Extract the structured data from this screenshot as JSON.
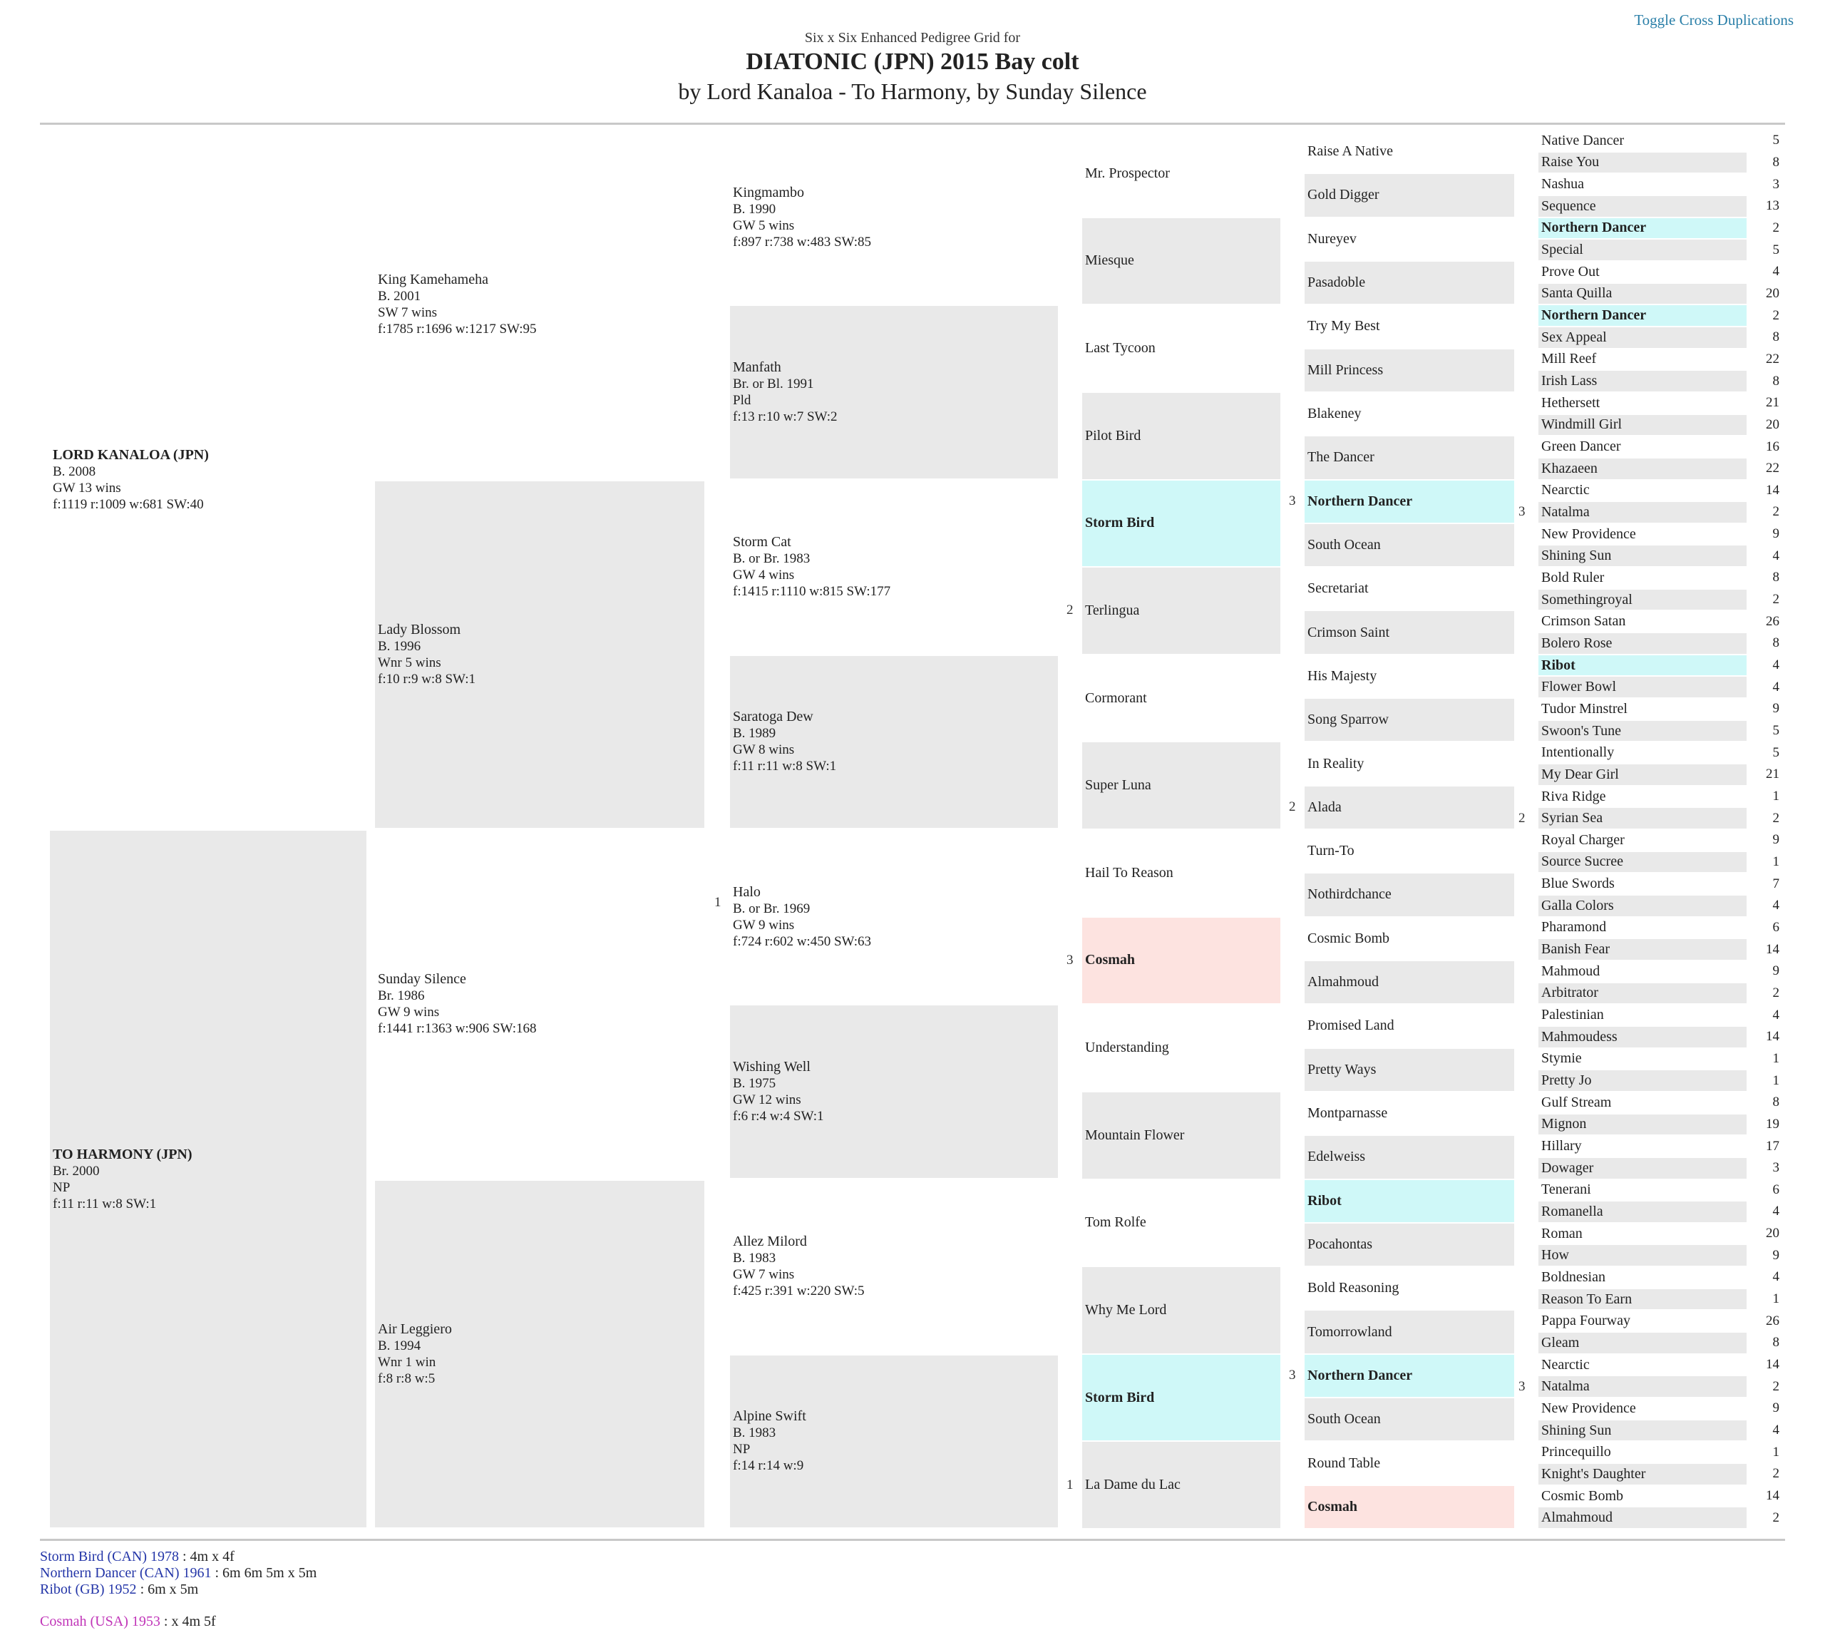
{
  "toggle_label": "Toggle Cross Duplications",
  "header": {
    "subtitle": "Six x Six Enhanced Pedigree Grid for",
    "title": "DIATONIC (JPN) 2015 Bay colt",
    "byline": "by Lord Kanaloa - To Harmony, by Sunday Silence"
  },
  "colors": {
    "shade": "#e9e9e9",
    "cross_blue": "#cff8f8",
    "cross_pink": "#fde3e0",
    "link": "#2a7fa8"
  },
  "col1": [
    {
      "name": "LORD KANALOA (JPN)",
      "lines": [
        "B. 2008",
        "GW 13 wins",
        "f:1119 r:1009 w:681 SW:40"
      ],
      "bold": true,
      "shade": false
    },
    {
      "name": "TO HARMONY (JPN)",
      "lines": [
        "Br. 2000",
        "NP",
        "f:11 r:11 w:8 SW:1"
      ],
      "bold": true,
      "shade": true
    }
  ],
  "col2": [
    {
      "name": "King Kamehameha",
      "lines": [
        "B. 2001",
        "SW 7 wins",
        "f:1785 r:1696 w:1217 SW:95"
      ],
      "shade": false
    },
    {
      "name": "Lady Blossom",
      "lines": [
        "B. 1996",
        "Wnr 5 wins",
        "f:10 r:9 w:8 SW:1"
      ],
      "shade": true
    },
    {
      "name": "Sunday Silence",
      "lines": [
        "Br. 1986",
        "GW 9 wins",
        "f:1441 r:1363 w:906 SW:168"
      ],
      "shade": false
    },
    {
      "name": "Air Leggiero",
      "lines": [
        "B. 1994",
        "Wnr 1 win",
        "f:8 r:8 w:5"
      ],
      "shade": true
    }
  ],
  "col3": [
    {
      "name": "Kingmambo",
      "lines": [
        "B. 1990",
        "GW 5 wins",
        "f:897 r:738 w:483 SW:85"
      ],
      "shade": false
    },
    {
      "name": "Manfath",
      "lines": [
        "Br. or Bl. 1991",
        "Pld",
        "f:13 r:10 w:7 SW:2"
      ],
      "shade": true
    },
    {
      "name": "Storm Cat",
      "lines": [
        "B. or Br. 1983",
        "GW 4 wins",
        "f:1415 r:1110 w:815 SW:177"
      ],
      "shade": false
    },
    {
      "name": "Saratoga Dew",
      "lines": [
        "B. 1989",
        "GW 8 wins",
        "f:11 r:11 w:8 SW:1"
      ],
      "shade": true
    },
    {
      "name": "Halo",
      "lines": [
        "B. or Br. 1969",
        "GW 9 wins",
        "f:724 r:602 w:450 SW:63"
      ],
      "shade": false,
      "dup": "1"
    },
    {
      "name": "Wishing Well",
      "lines": [
        "B. 1975",
        "GW 12 wins",
        "f:6 r:4 w:4 SW:1"
      ],
      "shade": true
    },
    {
      "name": "Allez Milord",
      "lines": [
        "B. 1983",
        "GW 7 wins",
        "f:425 r:391 w:220 SW:5"
      ],
      "shade": false
    },
    {
      "name": "Alpine Swift",
      "lines": [
        "B. 1983",
        "NP",
        "f:14 r:14 w:9"
      ],
      "shade": true
    }
  ],
  "col4": [
    {
      "name": "Mr. Prospector",
      "hl": "",
      "dup": ""
    },
    {
      "name": "Miesque",
      "hl": "shade",
      "dup": ""
    },
    {
      "name": "Last Tycoon",
      "hl": "",
      "dup": ""
    },
    {
      "name": "Pilot Bird",
      "hl": "shade",
      "dup": ""
    },
    {
      "name": "Storm Bird",
      "hl": "cyan",
      "dup": ""
    },
    {
      "name": "Terlingua",
      "hl": "shade",
      "dup": "2"
    },
    {
      "name": "Cormorant",
      "hl": "",
      "dup": ""
    },
    {
      "name": "Super Luna",
      "hl": "shade",
      "dup": ""
    },
    {
      "name": "Hail To Reason",
      "hl": "",
      "dup": ""
    },
    {
      "name": "Cosmah",
      "hl": "pink",
      "dup": "3"
    },
    {
      "name": "Understanding",
      "hl": "",
      "dup": ""
    },
    {
      "name": "Mountain Flower",
      "hl": "shade",
      "dup": ""
    },
    {
      "name": "Tom Rolfe",
      "hl": "",
      "dup": ""
    },
    {
      "name": "Why Me Lord",
      "hl": "shade",
      "dup": ""
    },
    {
      "name": "Storm Bird",
      "hl": "cyan",
      "dup": ""
    },
    {
      "name": "La Dame du Lac",
      "hl": "shade",
      "dup": "1"
    }
  ],
  "col5": [
    {
      "name": "Raise A Native",
      "hl": "",
      "dup": ""
    },
    {
      "name": "Gold Digger",
      "hl": "shade",
      "dup": ""
    },
    {
      "name": "Nureyev",
      "hl": "",
      "dup": ""
    },
    {
      "name": "Pasadoble",
      "hl": "shade",
      "dup": ""
    },
    {
      "name": "Try My Best",
      "hl": "",
      "dup": ""
    },
    {
      "name": "Mill Princess",
      "hl": "shade",
      "dup": ""
    },
    {
      "name": "Blakeney",
      "hl": "",
      "dup": ""
    },
    {
      "name": "The Dancer",
      "hl": "shade",
      "dup": ""
    },
    {
      "name": "Northern Dancer",
      "hl": "cyan",
      "dup": "3"
    },
    {
      "name": "South Ocean",
      "hl": "shade",
      "dup": ""
    },
    {
      "name": "Secretariat",
      "hl": "",
      "dup": ""
    },
    {
      "name": "Crimson Saint",
      "hl": "shade",
      "dup": ""
    },
    {
      "name": "His Majesty",
      "hl": "",
      "dup": ""
    },
    {
      "name": "Song Sparrow",
      "hl": "shade",
      "dup": ""
    },
    {
      "name": "In Reality",
      "hl": "",
      "dup": ""
    },
    {
      "name": "Alada",
      "hl": "shade",
      "dup": "2"
    },
    {
      "name": "Turn-To",
      "hl": "",
      "dup": ""
    },
    {
      "name": "Nothirdchance",
      "hl": "shade",
      "dup": ""
    },
    {
      "name": "Cosmic Bomb",
      "hl": "",
      "dup": ""
    },
    {
      "name": "Almahmoud",
      "hl": "shade",
      "dup": ""
    },
    {
      "name": "Promised Land",
      "hl": "",
      "dup": ""
    },
    {
      "name": "Pretty Ways",
      "hl": "shade",
      "dup": ""
    },
    {
      "name": "Montparnasse",
      "hl": "",
      "dup": ""
    },
    {
      "name": "Edelweiss",
      "hl": "shade",
      "dup": ""
    },
    {
      "name": "Ribot",
      "hl": "cyan",
      "dup": ""
    },
    {
      "name": "Pocahontas",
      "hl": "shade",
      "dup": ""
    },
    {
      "name": "Bold Reasoning",
      "hl": "",
      "dup": ""
    },
    {
      "name": "Tomorrowland",
      "hl": "shade",
      "dup": ""
    },
    {
      "name": "Northern Dancer",
      "hl": "cyan",
      "dup": "3"
    },
    {
      "name": "South Ocean",
      "hl": "shade",
      "dup": ""
    },
    {
      "name": "Round Table",
      "hl": "",
      "dup": ""
    },
    {
      "name": "Cosmah",
      "hl": "pink",
      "dup": ""
    }
  ],
  "col6": [
    {
      "name": "Native Dancer",
      "n": "5",
      "hl": ""
    },
    {
      "name": "Raise You",
      "n": "8",
      "hl": "shade"
    },
    {
      "name": "Nashua",
      "n": "3",
      "hl": ""
    },
    {
      "name": "Sequence",
      "n": "13",
      "hl": "shade"
    },
    {
      "name": "Northern Dancer",
      "n": "2",
      "hl": "cyan"
    },
    {
      "name": "Special",
      "n": "5",
      "hl": "shade"
    },
    {
      "name": "Prove Out",
      "n": "4",
      "hl": ""
    },
    {
      "name": "Santa Quilla",
      "n": "20",
      "hl": "shade"
    },
    {
      "name": "Northern Dancer",
      "n": "2",
      "hl": "cyan"
    },
    {
      "name": "Sex Appeal",
      "n": "8",
      "hl": "shade"
    },
    {
      "name": "Mill Reef",
      "n": "22",
      "hl": ""
    },
    {
      "name": "Irish Lass",
      "n": "8",
      "hl": "shade"
    },
    {
      "name": "Hethersett",
      "n": "21",
      "hl": ""
    },
    {
      "name": "Windmill Girl",
      "n": "20",
      "hl": "shade"
    },
    {
      "name": "Green Dancer",
      "n": "16",
      "hl": ""
    },
    {
      "name": "Khazaeen",
      "n": "22",
      "hl": "shade"
    },
    {
      "name": "Nearctic",
      "n": "14",
      "hl": ""
    },
    {
      "name": "Natalma",
      "n": "2",
      "hl": "shade"
    },
    {
      "name": "New Providence",
      "n": "9",
      "hl": ""
    },
    {
      "name": "Shining Sun",
      "n": "4",
      "hl": "shade"
    },
    {
      "name": "Bold Ruler",
      "n": "8",
      "hl": ""
    },
    {
      "name": "Somethingroyal",
      "n": "2",
      "hl": "shade"
    },
    {
      "name": "Crimson Satan",
      "n": "26",
      "hl": ""
    },
    {
      "name": "Bolero Rose",
      "n": "8",
      "hl": "shade"
    },
    {
      "name": "Ribot",
      "n": "4",
      "hl": "cyan"
    },
    {
      "name": "Flower Bowl",
      "n": "4",
      "hl": "shade"
    },
    {
      "name": "Tudor Minstrel",
      "n": "9",
      "hl": ""
    },
    {
      "name": "Swoon's Tune",
      "n": "5",
      "hl": "shade"
    },
    {
      "name": "Intentionally",
      "n": "5",
      "hl": ""
    },
    {
      "name": "My Dear Girl",
      "n": "21",
      "hl": "shade"
    },
    {
      "name": "Riva Ridge",
      "n": "1",
      "hl": ""
    },
    {
      "name": "Syrian Sea",
      "n": "2",
      "hl": "shade"
    },
    {
      "name": "Royal Charger",
      "n": "9",
      "hl": ""
    },
    {
      "name": "Source Sucree",
      "n": "1",
      "hl": "shade"
    },
    {
      "name": "Blue Swords",
      "n": "7",
      "hl": ""
    },
    {
      "name": "Galla Colors",
      "n": "4",
      "hl": "shade"
    },
    {
      "name": "Pharamond",
      "n": "6",
      "hl": ""
    },
    {
      "name": "Banish Fear",
      "n": "14",
      "hl": "shade"
    },
    {
      "name": "Mahmoud",
      "n": "9",
      "hl": ""
    },
    {
      "name": "Arbitrator",
      "n": "2",
      "hl": "shade"
    },
    {
      "name": "Palestinian",
      "n": "4",
      "hl": ""
    },
    {
      "name": "Mahmoudess",
      "n": "14",
      "hl": "shade"
    },
    {
      "name": "Stymie",
      "n": "1",
      "hl": ""
    },
    {
      "name": "Pretty Jo",
      "n": "1",
      "hl": "shade"
    },
    {
      "name": "Gulf Stream",
      "n": "8",
      "hl": ""
    },
    {
      "name": "Mignon",
      "n": "19",
      "hl": "shade"
    },
    {
      "name": "Hillary",
      "n": "17",
      "hl": ""
    },
    {
      "name": "Dowager",
      "n": "3",
      "hl": "shade"
    },
    {
      "name": "Tenerani",
      "n": "6",
      "hl": ""
    },
    {
      "name": "Romanella",
      "n": "4",
      "hl": "shade"
    },
    {
      "name": "Roman",
      "n": "20",
      "hl": ""
    },
    {
      "name": "How",
      "n": "9",
      "hl": "shade"
    },
    {
      "name": "Boldnesian",
      "n": "4",
      "hl": ""
    },
    {
      "name": "Reason To Earn",
      "n": "1",
      "hl": "shade"
    },
    {
      "name": "Pappa Fourway",
      "n": "26",
      "hl": ""
    },
    {
      "name": "Gleam",
      "n": "8",
      "hl": "shade"
    },
    {
      "name": "Nearctic",
      "n": "14",
      "hl": ""
    },
    {
      "name": "Natalma",
      "n": "2",
      "hl": "shade"
    },
    {
      "name": "New Providence",
      "n": "9",
      "hl": ""
    },
    {
      "name": "Shining Sun",
      "n": "4",
      "hl": "shade"
    },
    {
      "name": "Princequillo",
      "n": "1",
      "hl": ""
    },
    {
      "name": "Knight's Daughter",
      "n": "2",
      "hl": "shade"
    },
    {
      "name": "Cosmic Bomb",
      "n": "14",
      "hl": ""
    },
    {
      "name": "Almahmoud",
      "n": "2",
      "hl": "shade"
    }
  ],
  "col6_dups": [
    {
      "row": 17,
      "n": "3"
    },
    {
      "row": 31,
      "n": "2"
    },
    {
      "row": 57,
      "n": "3"
    }
  ],
  "legend": [
    {
      "name": "Storm Bird (CAN) 1978",
      "detail": " : 4m x 4f",
      "color": "blue"
    },
    {
      "name": "Northern Dancer (CAN) 1961",
      "detail": " : 6m 6m 5m x 5m",
      "color": "blue"
    },
    {
      "name": "Ribot (GB) 1952",
      "detail": " : 6m x 5m",
      "color": "blue"
    },
    {
      "name": "Cosmah (USA) 1953",
      "detail": " : x 4m 5f",
      "color": "magenta"
    }
  ]
}
